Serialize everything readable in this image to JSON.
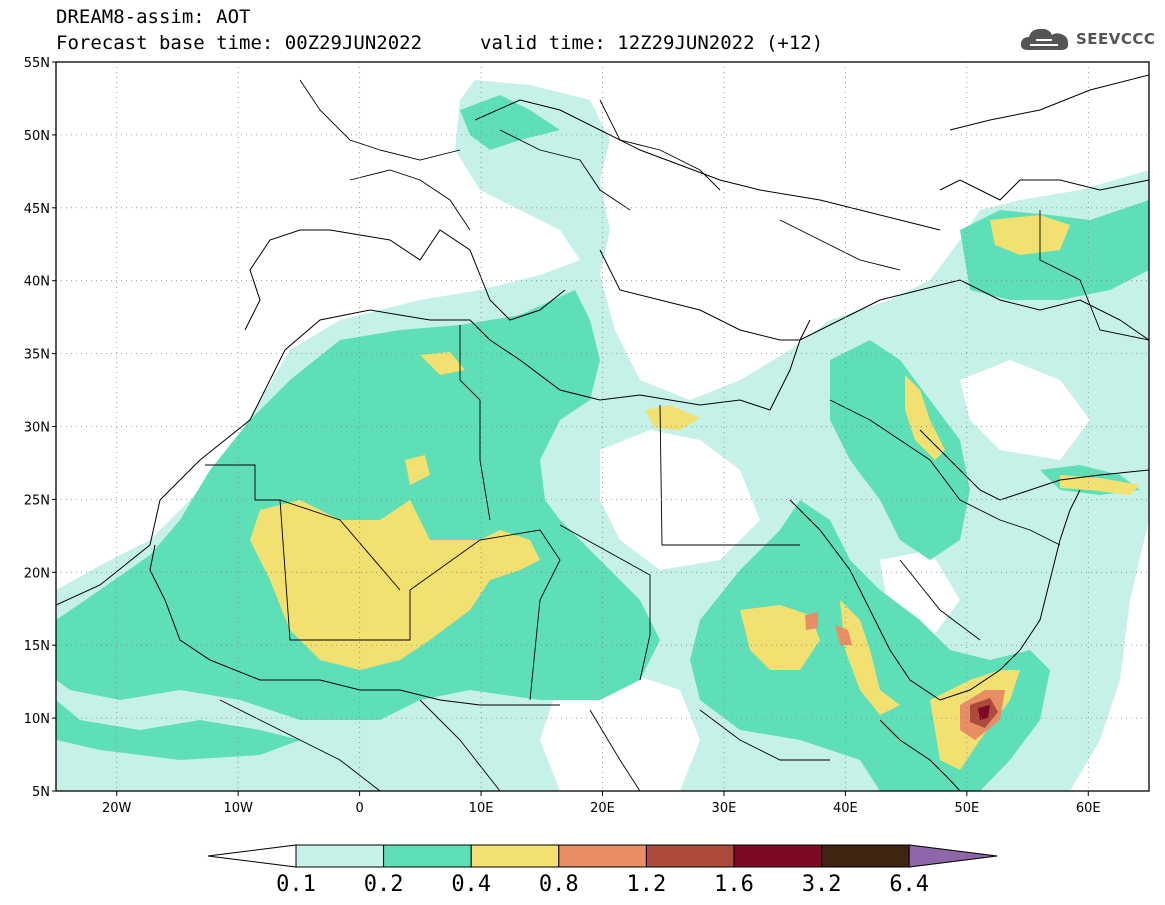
{
  "header": {
    "title": "DREAM8-assim: AOT",
    "base_time": "Forecast base time: 00Z29JUN2022",
    "valid_time": "valid time: 12Z29JUN2022 (+12)",
    "logo_text": "SEEVCCC",
    "logo_icon": "cloud-icon"
  },
  "map": {
    "lon_range": [
      -25,
      65
    ],
    "lat_range": [
      5,
      55
    ],
    "lat_labels": [
      {
        "lat": 55,
        "label": "55N"
      },
      {
        "lat": 50,
        "label": "50N"
      },
      {
        "lat": 45,
        "label": "45N"
      },
      {
        "lat": 40,
        "label": "40N"
      },
      {
        "lat": 35,
        "label": "35N"
      },
      {
        "lat": 30,
        "label": "30N"
      },
      {
        "lat": 25,
        "label": "25N"
      },
      {
        "lat": 20,
        "label": "20N"
      },
      {
        "lat": 15,
        "label": "15N"
      },
      {
        "lat": 10,
        "label": "10N"
      },
      {
        "lat": 5,
        "label": "5N"
      }
    ],
    "lon_labels": [
      {
        "lon": -20,
        "label": "20W"
      },
      {
        "lon": -10,
        "label": "10W"
      },
      {
        "lon": 0,
        "label": "0"
      },
      {
        "lon": 10,
        "label": "10E"
      },
      {
        "lon": 20,
        "label": "20E"
      },
      {
        "lon": 30,
        "label": "30E"
      },
      {
        "lon": 40,
        "label": "40E"
      },
      {
        "lon": 50,
        "label": "50E"
      },
      {
        "lon": 60,
        "label": "60E"
      }
    ]
  },
  "colorbar": {
    "colors": [
      "#c6f1e8",
      "#5fdfb8",
      "#f2e070",
      "#e98d64",
      "#ac4b3a",
      "#7c0a24",
      "#3d2512"
    ],
    "under_color": "#ffffff",
    "over_color": "#8e67ab",
    "labels": [
      "0.1",
      "0.2",
      "0.4",
      "0.8",
      "1.2",
      "1.6",
      "3.2",
      "6.4"
    ]
  }
}
